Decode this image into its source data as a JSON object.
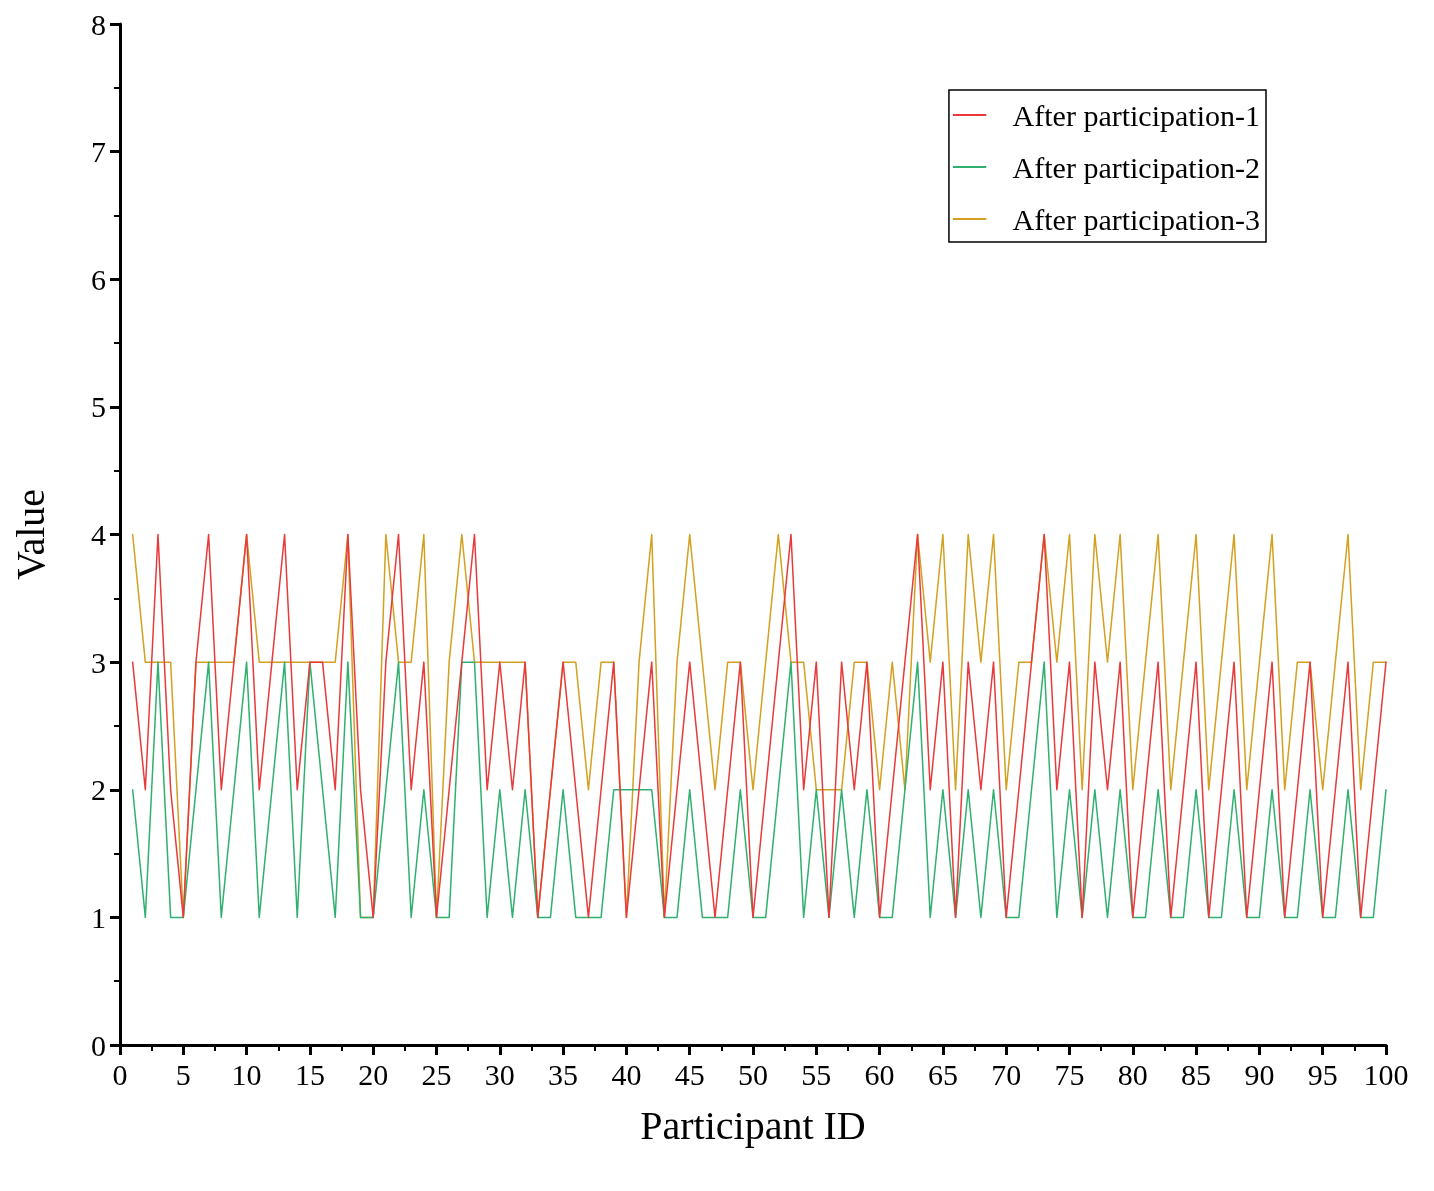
{
  "chart_data": {
    "type": "line",
    "xlabel": "Participant ID",
    "ylabel": "Value",
    "x": [
      1,
      2,
      3,
      4,
      5,
      6,
      7,
      8,
      9,
      10,
      11,
      12,
      13,
      14,
      15,
      16,
      17,
      18,
      19,
      20,
      21,
      22,
      23,
      24,
      25,
      26,
      27,
      28,
      29,
      30,
      31,
      32,
      33,
      34,
      35,
      36,
      37,
      38,
      39,
      40,
      41,
      42,
      43,
      44,
      45,
      46,
      47,
      48,
      49,
      50,
      51,
      52,
      53,
      54,
      55,
      56,
      57,
      58,
      59,
      60,
      61,
      62,
      63,
      64,
      65,
      66,
      67,
      68,
      69,
      70,
      71,
      72,
      73,
      74,
      75,
      76,
      77,
      78,
      79,
      80,
      81,
      82,
      83,
      84,
      85,
      86,
      87,
      88,
      89,
      90,
      91,
      92,
      93,
      94,
      95,
      96,
      97,
      98,
      99,
      100
    ],
    "series": [
      {
        "name": "After participation-1",
        "color": "#e83a3a",
        "values": [
          3,
          2,
          4,
          2,
          1,
          3,
          4,
          2,
          3,
          4,
          2,
          3,
          4,
          2,
          3,
          3,
          2,
          4,
          2,
          1,
          3,
          4,
          2,
          3,
          1,
          2,
          3,
          4,
          2,
          3,
          2,
          3,
          1,
          2,
          3,
          2,
          1,
          2,
          3,
          1,
          2,
          3,
          1,
          2,
          3,
          2,
          1,
          2,
          3,
          1,
          2,
          3,
          4,
          2,
          3,
          1,
          3,
          2,
          3,
          1,
          2,
          3,
          4,
          2,
          3,
          1,
          3,
          2,
          3,
          1,
          2,
          3,
          4,
          2,
          3,
          1,
          3,
          2,
          3,
          1,
          2,
          3,
          1,
          2,
          3,
          1,
          2,
          3,
          1,
          2,
          3,
          1,
          2,
          3,
          1,
          2,
          3,
          1,
          2,
          3
        ]
      },
      {
        "name": "After participation-2",
        "color": "#30b070",
        "values": [
          2,
          1,
          3,
          1,
          1,
          2,
          3,
          1,
          2,
          3,
          1,
          2,
          3,
          1,
          3,
          2,
          1,
          3,
          1,
          1,
          2,
          3,
          1,
          2,
          1,
          1,
          3,
          3,
          1,
          2,
          1,
          2,
          1,
          1,
          2,
          1,
          1,
          1,
          2,
          2,
          2,
          2,
          1,
          1,
          2,
          1,
          1,
          1,
          2,
          1,
          1,
          2,
          3,
          1,
          2,
          1,
          2,
          1,
          2,
          1,
          1,
          2,
          3,
          1,
          2,
          1,
          2,
          1,
          2,
          1,
          1,
          2,
          3,
          1,
          2,
          1,
          2,
          1,
          2,
          1,
          1,
          2,
          1,
          1,
          2,
          1,
          1,
          2,
          1,
          1,
          2,
          1,
          1,
          2,
          1,
          1,
          2,
          1,
          1,
          2
        ]
      },
      {
        "name": "After participation-3",
        "color": "#d4a020",
        "values": [
          4,
          3,
          3,
          3,
          1,
          3,
          3,
          3,
          3,
          4,
          3,
          3,
          3,
          3,
          3,
          3,
          3,
          4,
          1,
          1,
          4,
          3,
          3,
          4,
          1,
          3,
          4,
          3,
          3,
          3,
          3,
          3,
          1,
          2,
          3,
          3,
          2,
          3,
          3,
          1,
          3,
          4,
          1,
          3,
          4,
          3,
          2,
          3,
          3,
          2,
          3,
          4,
          3,
          3,
          2,
          2,
          2,
          3,
          3,
          2,
          3,
          2,
          4,
          3,
          4,
          2,
          4,
          3,
          4,
          2,
          3,
          3,
          4,
          3,
          4,
          2,
          4,
          3,
          4,
          2,
          3,
          4,
          2,
          3,
          4,
          2,
          3,
          4,
          2,
          3,
          4,
          2,
          3,
          3,
          2,
          3,
          4,
          2,
          3,
          3
        ]
      }
    ],
    "xlim": [
      0,
      100
    ],
    "xticks": [
      0,
      5,
      10,
      15,
      20,
      25,
      30,
      35,
      40,
      45,
      50,
      55,
      60,
      65,
      70,
      75,
      80,
      85,
      90,
      95,
      100
    ],
    "ylim": [
      0,
      8
    ],
    "yticks": [
      0,
      1,
      2,
      3,
      4,
      5,
      6,
      7,
      8
    ],
    "grid": false,
    "legend": "top right",
    "marker": "none",
    "line_style": "solid"
  }
}
